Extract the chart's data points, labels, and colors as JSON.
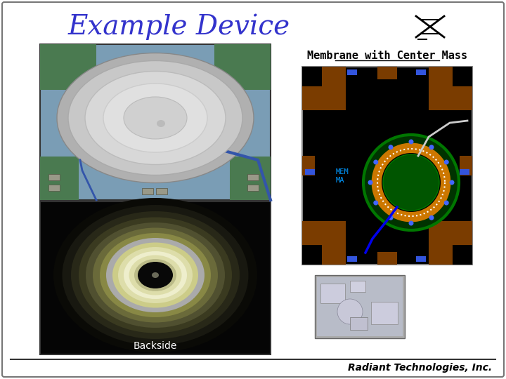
{
  "title": "Example Device",
  "title_color": "#3333cc",
  "title_fontsize": 28,
  "subtitle_membrane": "Membrane with Center Mass",
  "subtitle_fontsize": 11,
  "backside_label": "Backside",
  "backside_label_color": "white",
  "backside_fontsize": 10,
  "footer_text": "Radiant Technologies, Inc.",
  "footer_fontsize": 10,
  "bg_color": "white",
  "border_color": "#777777",
  "top_photo_bg": "#7a9db5",
  "schematic_pad_color": "#7a3c00",
  "schematic_green_outer": "#006600",
  "schematic_orange": "#cc7700",
  "schematic_blue_dot": "#4466ff",
  "schematic_text_color": "#0099ff",
  "bottom_photo_bg": "#050505",
  "symbol_color": "#000000"
}
